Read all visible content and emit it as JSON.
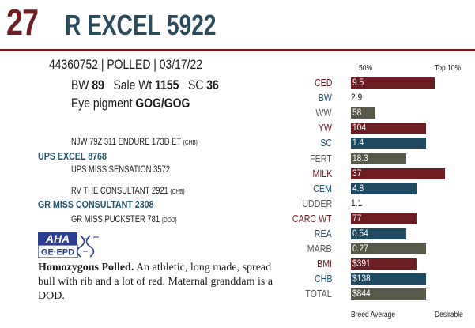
{
  "header": {
    "lot": "27",
    "name": "R EXCEL 5922"
  },
  "info": {
    "id_line": "44360752 | POLLED | 03/17/22",
    "bw_label": "BW",
    "bw": "89",
    "sale_label": "Sale Wt",
    "sale": "1155",
    "sc_label": "SC",
    "sc": "36",
    "eye_label": "Eye pigment",
    "eye": "GOG/GOG"
  },
  "pedigree": {
    "sire_sire": "NJW 79Z 311 ENDURE 173D ET",
    "sire_sire_tag": "{CHB}",
    "sire": "UPS EXCEL 8768",
    "sire_dam": "UPS MISS SENSATION 3572",
    "dam_sire": "RV THE CONSULTANT 2921",
    "dam_sire_tag": "{CHB}",
    "dam": "GR MISS CONSULTANT 2308",
    "dam_dam": "GR MISS PUCKSTER 781",
    "dam_dam_tag": "{DOD}"
  },
  "logo": {
    "top": "AHA",
    "bottom": "GE·EPD"
  },
  "description": {
    "lead": "Homozygous Polled.",
    "text": " An athletic, long made, spread bull with rib and a lot of red. Maternal granddam is a DOD."
  },
  "epd": {
    "header_left": "50%",
    "header_right": "Top 10%",
    "footer_left": "Breed Average",
    "footer_right": "Desirable",
    "colors": {
      "red": "#6d1e22",
      "blue": "#1f4a62",
      "gray": "#59594a"
    },
    "rows": [
      {
        "trait": "CED",
        "value": "9.5",
        "color": "red",
        "level": 0.85
      },
      {
        "trait": "BW",
        "value": "2.9",
        "color": "blue",
        "level": null
      },
      {
        "trait": "WW",
        "value": "58",
        "color": "gray",
        "level": 0.25
      },
      {
        "trait": "YW",
        "value": "104",
        "color": "red",
        "level": 0.76
      },
      {
        "trait": "SC",
        "value": "1.4",
        "color": "blue",
        "level": 0.76
      },
      {
        "trait": "FERT",
        "value": "18.3",
        "color": "gray",
        "level": 0.56
      },
      {
        "trait": "MILK",
        "value": "37",
        "color": "red",
        "level": 0.95
      },
      {
        "trait": "CEM",
        "value": "4.8",
        "color": "blue",
        "level": 0.66
      },
      {
        "trait": "UDDER",
        "value": "1.1",
        "color": "gray",
        "level": null
      },
      {
        "trait": "CARC WT",
        "value": "77",
        "color": "red",
        "level": 0.66
      },
      {
        "trait": "REA",
        "value": "0.54",
        "color": "blue",
        "level": 0.56
      },
      {
        "trait": "MARB",
        "value": "0.27",
        "color": "gray",
        "level": 0.76
      },
      {
        "trait": "BMI",
        "value": "$391",
        "color": "red",
        "level": 0.66
      },
      {
        "trait": "CHB",
        "value": "$138",
        "color": "blue",
        "level": 0.76
      },
      {
        "trait": "TOTAL",
        "value": "$844",
        "color": "gray",
        "level": 0.76
      }
    ]
  }
}
